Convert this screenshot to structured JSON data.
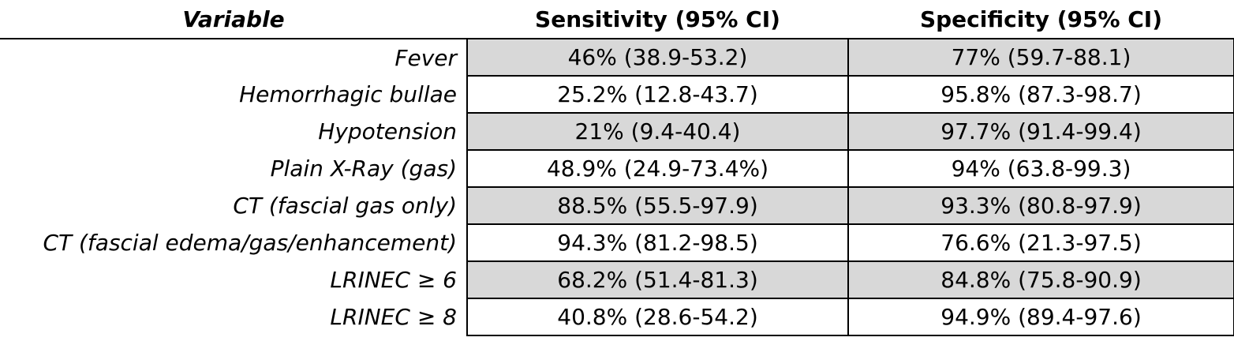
{
  "table": {
    "headers": {
      "variable": "Variable",
      "sensitivity": "Sensitivity (95% CI)",
      "specificity": "Specificity (95% CI)"
    },
    "rows": [
      {
        "variable": "Fever",
        "sensitivity": "46% (38.9-53.2)",
        "specificity": "77% (59.7-88.1)"
      },
      {
        "variable": "Hemorrhagic bullae",
        "sensitivity": "25.2% (12.8-43.7)",
        "specificity": "95.8% (87.3-98.7)"
      },
      {
        "variable": "Hypotension",
        "sensitivity": "21% (9.4-40.4)",
        "specificity": "97.7% (91.4-99.4)"
      },
      {
        "variable": "Plain X-Ray (gas)",
        "sensitivity": "48.9% (24.9-73.4%)",
        "specificity": "94% (63.8-99.3)"
      },
      {
        "variable": "CT (fascial gas only)",
        "sensitivity": "88.5% (55.5-97.9)",
        "specificity": "93.3% (80.8-97.9)"
      },
      {
        "variable": "CT (fascial edema/gas/enhancement)",
        "sensitivity": "94.3% (81.2-98.5)",
        "specificity": "76.6% (21.3-97.5)"
      },
      {
        "variable": "LRINEC ≥ 6",
        "sensitivity": "68.2% (51.4-81.3)",
        "specificity": "84.8% (75.8-90.9)"
      },
      {
        "variable": "LRINEC ≥ 8",
        "sensitivity": "40.8% (28.6-54.2)",
        "specificity": "94.9% (89.4-97.6)"
      }
    ]
  }
}
